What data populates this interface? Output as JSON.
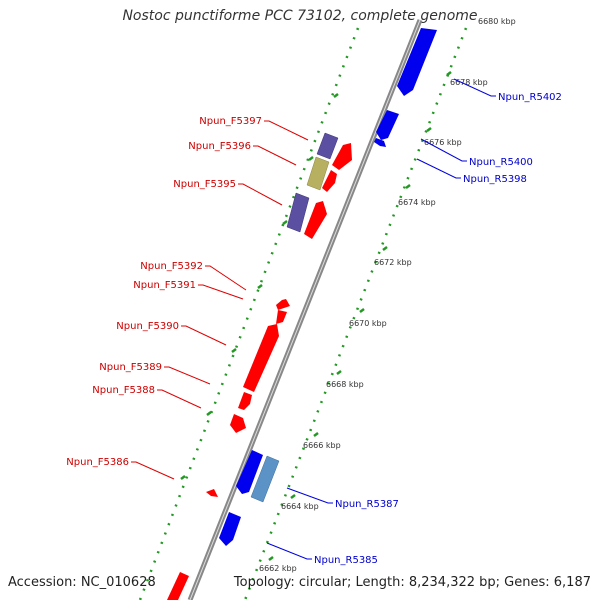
{
  "title": "Nostoc punctiforme PCC 73102, complete genome",
  "footer": {
    "accession": "Accession: NC_010628",
    "details": "Topology: circular; Length: 8,234,322 bp; Genes: 6,187"
  },
  "colors": {
    "forward": "#ff0000",
    "reverse": "#0000ee",
    "purple": "#5a4fa0",
    "olive": "#b7b060",
    "steel": "#5b93c6",
    "ring_tick": "#229922",
    "label_forward": "#cc0000",
    "label_reverse": "#0000cc"
  },
  "scale_labels": [
    "6680 kbp",
    "6678 kbp",
    "6676 kbp",
    "6674 kbp",
    "6672 kbp",
    "6670 kbp",
    "6668 kbp",
    "6666 kbp",
    "6664 kbp",
    "6662 kbp"
  ],
  "forward_labels": [
    "Npun_F5397",
    "Npun_F5396",
    "Npun_F5395",
    "Npun_F5392",
    "Npun_F5391",
    "Npun_F5390",
    "Npun_F5389",
    "Npun_F5388",
    "Npun_F5386"
  ],
  "reverse_labels": [
    "Npun_R5402",
    "Npun_R5400",
    "Npun_R5398",
    "Npun_R5387",
    "Npun_R5385"
  ]
}
